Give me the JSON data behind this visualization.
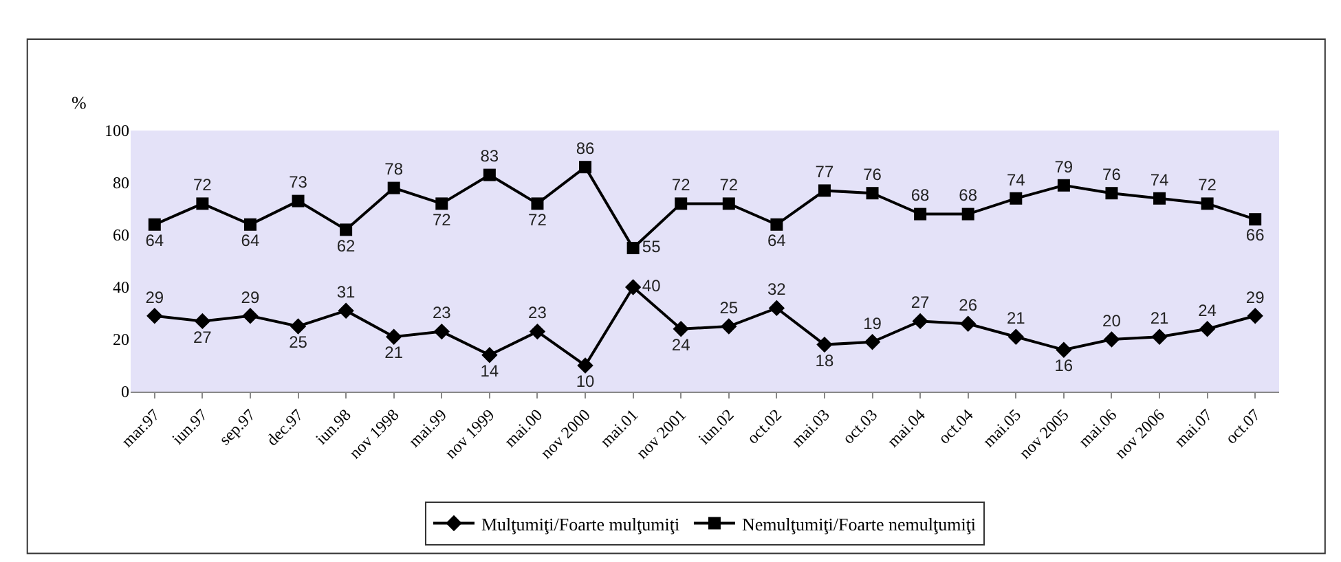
{
  "chart_data": {
    "type": "line",
    "ylabel": "%",
    "categories": [
      "mar.97",
      "iun.97",
      "sep.97",
      "dec.97",
      "iun.98",
      "nov 1998",
      "mai.99",
      "nov 1999",
      "mai.00",
      "nov 2000",
      "mai.01",
      "nov 2001",
      "iun.02",
      "oct.02",
      "mai.03",
      "oct.03",
      "mai.04",
      "oct.04",
      "mai.05",
      "nov 2005",
      "mai.06",
      "nov 2006",
      "mai.07",
      "oct.07"
    ],
    "series": [
      {
        "name": "Mulţumiţi/Foarte mulţumiţi",
        "color": "#000000",
        "marker": "diamond",
        "values": [
          29,
          27,
          29,
          25,
          31,
          21,
          23,
          14,
          23,
          10,
          40,
          24,
          25,
          32,
          18,
          19,
          27,
          26,
          21,
          16,
          20,
          21,
          24,
          29
        ]
      },
      {
        "name": "Nemulţumiţi/Foarte nemulţumiţi",
        "color": "#000000",
        "marker": "square",
        "values": [
          64,
          72,
          64,
          73,
          62,
          78,
          72,
          83,
          72,
          86,
          55,
          72,
          72,
          64,
          77,
          76,
          68,
          68,
          74,
          79,
          76,
          74,
          72,
          66
        ]
      }
    ],
    "ylim": [
      0,
      100
    ],
    "yticks": [
      0,
      20,
      40,
      60,
      80,
      100
    ],
    "grid": false,
    "legend": "bottom",
    "data_labels": true,
    "line_style": "solid"
  }
}
